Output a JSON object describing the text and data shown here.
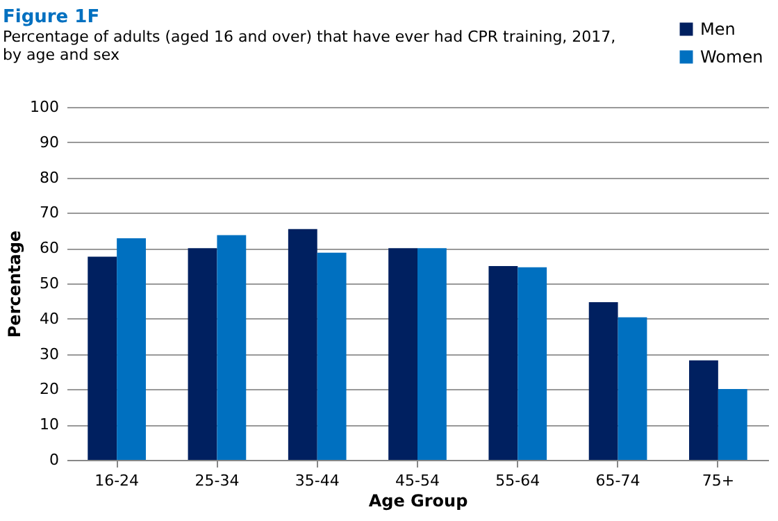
{
  "chart_data": {
    "type": "bar",
    "title": "Figure 1F",
    "subtitle": "Percentage of adults (aged 16 and over) that have ever had CPR training, 2017, by age and sex",
    "xlabel": "Age Group",
    "ylabel": "Percentage",
    "categories": [
      "16-24",
      "25-34",
      "35-44",
      "45-54",
      "55-64",
      "65-74",
      "75+"
    ],
    "series": [
      {
        "name": "Men",
        "color": "#002060",
        "values": [
          57.6,
          60,
          65.4,
          60,
          54.9,
          44.7,
          28.2
        ]
      },
      {
        "name": "Women",
        "color": "#0070c0",
        "values": [
          62.8,
          63.7,
          58.7,
          60,
          54.6,
          40.4,
          20.1
        ]
      }
    ],
    "ylim": [
      0,
      100
    ],
    "yticks": [
      0,
      10,
      20,
      30,
      40,
      50,
      60,
      70,
      80,
      90,
      100
    ],
    "grid": "y",
    "legend": "top right"
  }
}
